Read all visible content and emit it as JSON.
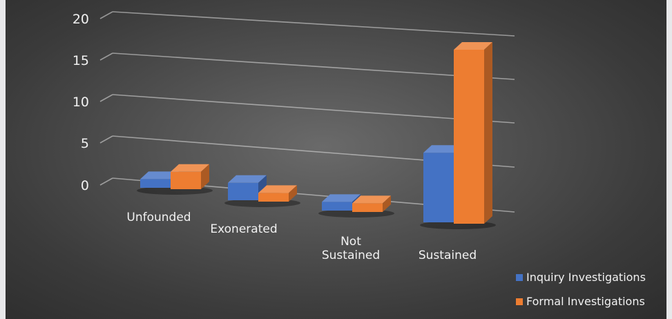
{
  "chart_data": {
    "type": "bar",
    "categories": [
      "Unfounded",
      "Exonerated",
      "Not Sustained",
      "Sustained"
    ],
    "series": [
      {
        "name": "Inquiry Investigations",
        "values": [
          1,
          2,
          1,
          8
        ],
        "color": "#4472c4"
      },
      {
        "name": "Formal Investigations",
        "values": [
          2,
          1,
          1,
          20
        ],
        "color": "#ed7d31"
      }
    ],
    "y_ticks": [
      "0",
      "5",
      "10",
      "15",
      "20"
    ],
    "ylim": [
      0,
      20
    ],
    "legend_position": "bottom-right",
    "grid": true,
    "title": "",
    "xlabel": "",
    "ylabel": ""
  }
}
